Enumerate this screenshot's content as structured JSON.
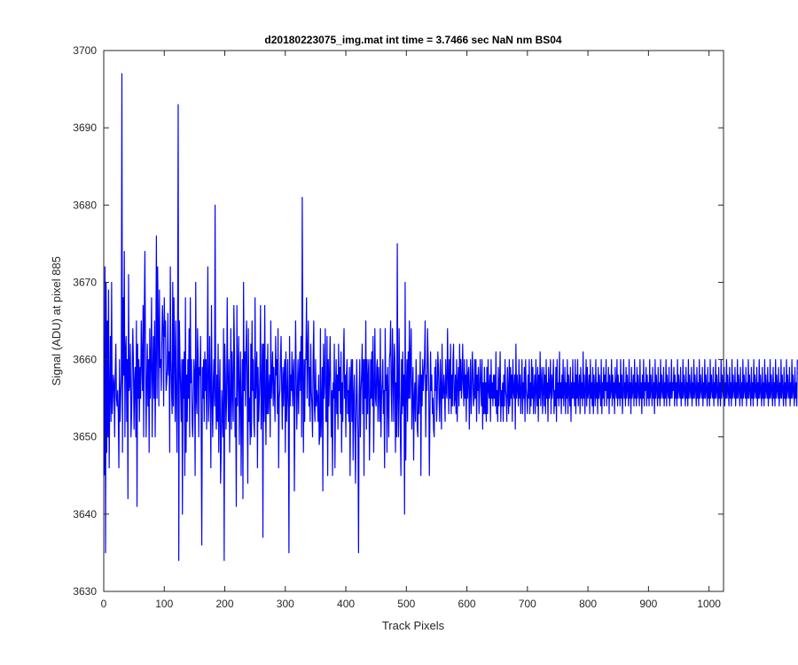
{
  "chart_data": {
    "type": "line",
    "title": "d20180223075_img.mat int time = 3.7466 sec  NaN nm BS04",
    "xlabel": "Track Pixels",
    "ylabel": "Signal (ADU) at pixel 885",
    "xlim": [
      0,
      1024
    ],
    "ylim": [
      3630,
      3700
    ],
    "x_ticks": [
      0,
      100,
      200,
      300,
      400,
      500,
      600,
      700,
      800,
      900,
      1000
    ],
    "y_ticks": [
      3630,
      3640,
      3650,
      3660,
      3670,
      3680,
      3690,
      3700
    ],
    "grid": false,
    "legend": "none",
    "line_color": "#0000ff",
    "x_start": 1,
    "x_step": 1,
    "series": [
      {
        "values": [
          3645,
          3672,
          3635,
          3670,
          3648,
          3665,
          3650,
          3669,
          3646,
          3655,
          3663,
          3652,
          3670,
          3653,
          3655,
          3658,
          3657,
          3650,
          3658,
          3662,
          3655,
          3654,
          3656,
          3653,
          3646,
          3660,
          3652,
          3655,
          3658,
          3697,
          3648,
          3668,
          3658,
          3674,
          3650,
          3661,
          3663,
          3652,
          3660,
          3642,
          3671,
          3656,
          3657,
          3662,
          3650,
          3653,
          3658,
          3664,
          3660,
          3651,
          3657,
          3659,
          3650,
          3665,
          3641,
          3662,
          3655,
          3660,
          3652,
          3659,
          3655,
          3665,
          3660,
          3656,
          3667,
          3650,
          3666,
          3674,
          3660,
          3650,
          3657,
          3662,
          3654,
          3660,
          3648,
          3664,
          3655,
          3660,
          3668,
          3650,
          3658,
          3663,
          3655,
          3665,
          3650,
          3660,
          3676,
          3655,
          3672,
          3665,
          3654,
          3669,
          3659,
          3660,
          3656,
          3663,
          3667,
          3664,
          3654,
          3668,
          3663,
          3665,
          3656,
          3657,
          3659,
          3666,
          3658,
          3661,
          3648,
          3672,
          3660,
          3656,
          3653,
          3670,
          3654,
          3668,
          3660,
          3652,
          3665,
          3656,
          3648,
          3660,
          3693,
          3634,
          3665,
          3660,
          3656,
          3652,
          3660,
          3640,
          3660,
          3655,
          3661,
          3645,
          3668,
          3648,
          3658,
          3652,
          3660,
          3655,
          3664,
          3650,
          3668,
          3657,
          3660,
          3652,
          3650,
          3655,
          3660,
          3658,
          3645,
          3670,
          3655,
          3653,
          3664,
          3660,
          3650,
          3659,
          3658,
          3663,
          3651,
          3636,
          3659,
          3655,
          3660,
          3652,
          3661,
          3656,
          3660,
          3651,
          3658,
          3672,
          3652,
          3655,
          3663,
          3656,
          3646,
          3667,
          3655,
          3650,
          3657,
          3660,
          3654,
          3680,
          3655,
          3651,
          3658,
          3652,
          3662,
          3648,
          3655,
          3660,
          3644,
          3648,
          3656,
          3653,
          3650,
          3664,
          3634,
          3662,
          3658,
          3651,
          3655,
          3668,
          3657,
          3652,
          3660,
          3648,
          3655,
          3664,
          3651,
          3661,
          3656,
          3652,
          3667,
          3661,
          3650,
          3655,
          3641,
          3667,
          3654,
          3658,
          3663,
          3649,
          3656,
          3661,
          3645,
          3654,
          3660,
          3642,
          3670,
          3656,
          3661,
          3654,
          3661,
          3665,
          3657,
          3644,
          3664,
          3652,
          3655,
          3649,
          3662,
          3650,
          3665,
          3656,
          3660,
          3652,
          3650,
          3668,
          3655,
          3658,
          3661,
          3646,
          3659,
          3652,
          3655,
          3658,
          3667,
          3651,
          3656,
          3662,
          3637,
          3662,
          3652,
          3667,
          3655,
          3649,
          3660,
          3653,
          3662,
          3653,
          3656,
          3658,
          3650,
          3665,
          3655,
          3658,
          3661,
          3654,
          3659,
          3656,
          3652,
          3663,
          3658,
          3660,
          3653,
          3664,
          3646,
          3655,
          3656,
          3660,
          3663,
          3656,
          3651,
          3659,
          3654,
          3658,
          3660,
          3648,
          3661,
          3652,
          3655,
          3660,
          3654,
          3635,
          3663,
          3654,
          3658,
          3656,
          3661,
          3654,
          3658,
          3660,
          3643,
          3655,
          3665,
          3658,
          3651,
          3656,
          3660,
          3653,
          3658,
          3661,
          3656,
          3663,
          3650,
          3681,
          3658,
          3648,
          3660,
          3652,
          3660,
          3660,
          3668,
          3655,
          3661,
          3665,
          3654,
          3659,
          3652,
          3662,
          3656,
          3654,
          3650,
          3660,
          3665,
          3654,
          3652,
          3660,
          3654,
          3656,
          3655,
          3652,
          3658,
          3649,
          3650,
          3664,
          3650,
          3654,
          3659,
          3643,
          3662,
          3655,
          3658,
          3664,
          3652,
          3652,
          3663,
          3645,
          3660,
          3654,
          3658,
          3663,
          3656,
          3650,
          3656,
          3645,
          3657,
          3655,
          3662,
          3646,
          3656,
          3660,
          3653,
          3658,
          3651,
          3662,
          3656,
          3659,
          3653,
          3661,
          3648,
          3657,
          3652,
          3660,
          3664,
          3655,
          3658,
          3650,
          3658,
          3660,
          3653,
          3656,
          3652,
          3659,
          3645,
          3657,
          3660,
          3652,
          3660,
          3647,
          3655,
          3658,
          3651,
          3644,
          3654,
          3660,
          3654,
          3650,
          3635,
          3655,
          3660,
          3650,
          3656,
          3658,
          3662,
          3653,
          3660,
          3645,
          3660,
          3655,
          3665,
          3651,
          3660,
          3653,
          3658,
          3660,
          3647,
          3653,
          3660,
          3655,
          3661,
          3654,
          3663,
          3648,
          3656,
          3664,
          3655,
          3654,
          3659,
          3660,
          3652,
          3659,
          3656,
          3652,
          3664,
          3650,
          3655,
          3657,
          3660,
          3653,
          3656,
          3646,
          3664,
          3656,
          3658,
          3648,
          3659,
          3655,
          3650,
          3660,
          3661,
          3665,
          3656,
          3652,
          3664,
          3658,
          3652,
          3662,
          3660,
          3648,
          3657,
          3650,
          3675,
          3655,
          3650,
          3664,
          3656,
          3651,
          3645,
          3660,
          3653,
          3661,
          3654,
          3658,
          3640,
          3670,
          3647,
          3656,
          3660,
          3652,
          3661,
          3655,
          3665,
          3655,
          3660,
          3664,
          3651,
          3656,
          3659,
          3647,
          3655,
          3657,
          3652,
          3660,
          3656,
          3651,
          3650,
          3658,
          3653,
          3656,
          3661,
          3645,
          3658,
          3654,
          3660,
          3656,
          3658,
          3660,
          3665,
          3650,
          3658,
          3656,
          3664,
          3660,
          3656,
          3645,
          3653,
          3661,
          3656,
          3658,
          3653,
          3655,
          3651,
          3650,
          3659,
          3656,
          3660,
          3652,
          3655,
          3661,
          3659,
          3655,
          3652,
          3660,
          3656,
          3651,
          3662,
          3655,
          3655,
          3658,
          3656,
          3652,
          3660,
          3656,
          3655,
          3664,
          3658,
          3653,
          3660,
          3655,
          3662,
          3653,
          3658,
          3654,
          3660,
          3662,
          3654,
          3655,
          3658,
          3653,
          3660,
          3652,
          3657,
          3659,
          3654,
          3662,
          3656,
          3660,
          3655,
          3657,
          3662,
          3657,
          3654,
          3660,
          3655,
          3658,
          3652,
          3660,
          3655,
          3658,
          3659,
          3651,
          3656,
          3660,
          3653,
          3656,
          3661,
          3658,
          3654,
          3655,
          3660,
          3655,
          3660,
          3652,
          3658,
          3656,
          3659,
          3653,
          3656,
          3660,
          3657,
          3654,
          3660,
          3651,
          3657,
          3653,
          3659,
          3653,
          3657,
          3652,
          3659,
          3653,
          3660,
          3656,
          3655,
          3658,
          3652,
          3660,
          3655,
          3657,
          3654,
          3658,
          3655,
          3658,
          3654,
          3661,
          3653,
          3656,
          3652,
          3659,
          3654,
          3657,
          3661,
          3652,
          3656,
          3654,
          3657,
          3652,
          3658,
          3654,
          3660,
          3656,
          3655,
          3652,
          3659,
          3656,
          3653,
          3660,
          3654,
          3659,
          3655,
          3658,
          3652,
          3660,
          3656,
          3655,
          3658,
          3651,
          3662,
          3655,
          3658,
          3656,
          3654,
          3660,
          3655,
          3658,
          3653,
          3656,
          3660,
          3653,
          3657,
          3655,
          3659,
          3652,
          3660,
          3656,
          3655,
          3653,
          3658,
          3655,
          3660,
          3653,
          3657,
          3654,
          3660,
          3655,
          3659,
          3653,
          3656,
          3658,
          3653,
          3660,
          3656,
          3654,
          3659,
          3652,
          3658,
          3655,
          3661,
          3654,
          3657,
          3659,
          3653,
          3656,
          3659,
          3654,
          3658,
          3653,
          3660,
          3655,
          3657,
          3652,
          3659,
          3655,
          3656,
          3660,
          3653,
          3658,
          3655,
          3657,
          3660,
          3653,
          3656,
          3654,
          3659,
          3652,
          3660,
          3655,
          3657,
          3654,
          3661,
          3655,
          3657,
          3653,
          3658,
          3655,
          3660,
          3654,
          3656,
          3659,
          3653,
          3657,
          3655,
          3660,
          3653,
          3658,
          3656,
          3654,
          3659,
          3652,
          3657,
          3655,
          3660,
          3655,
          3657,
          3654,
          3660,
          3653,
          3658,
          3655,
          3660,
          3654,
          3656,
          3658,
          3653,
          3659,
          3655,
          3657,
          3654,
          3661,
          3655,
          3658,
          3653,
          3656,
          3660,
          3654,
          3659,
          3655,
          3656,
          3658,
          3653,
          3660,
          3655,
          3657,
          3654,
          3659,
          3653,
          3658,
          3656,
          3654,
          3660,
          3655,
          3657,
          3653,
          3659,
          3655,
          3658,
          3656,
          3654,
          3660,
          3653,
          3657,
          3655,
          3659,
          3654,
          3658,
          3656,
          3660,
          3654,
          3657,
          3655,
          3659,
          3653,
          3658,
          3655,
          3656,
          3660,
          3654,
          3658,
          3655,
          3657,
          3653,
          3659,
          3656,
          3655,
          3660,
          3654,
          3658,
          3655,
          3657,
          3654,
          3660,
          3655,
          3658,
          3653,
          3656,
          3660,
          3655,
          3657,
          3654,
          3659,
          3655,
          3658,
          3656,
          3654,
          3660,
          3655,
          3657,
          3653,
          3659,
          3655,
          3656,
          3658,
          3654,
          3660,
          3655,
          3657,
          3654,
          3659,
          3655,
          3658,
          3656,
          3654,
          3660,
          3655,
          3657,
          3653,
          3658,
          3655,
          3660,
          3654,
          3657,
          3656,
          3659,
          3654,
          3658,
          3655,
          3657,
          3654,
          3660,
          3655,
          3658,
          3656,
          3654,
          3659,
          3655,
          3657,
          3653,
          3660,
          3655,
          3658,
          3656,
          3654,
          3659,
          3655,
          3657,
          3654,
          3660,
          3655,
          3658,
          3656,
          3655,
          3659,
          3654,
          3657,
          3655,
          3660,
          3654,
          3658,
          3656,
          3655,
          3659,
          3654,
          3657,
          3655,
          3660,
          3655,
          3657,
          3656,
          3659,
          3654,
          3658,
          3655,
          3657,
          3654,
          3660,
          3655,
          3658,
          3656,
          3655,
          3659,
          3654,
          3657,
          3655,
          3660,
          3655,
          3658,
          3656,
          3654,
          3659,
          3655,
          3657,
          3654,
          3660,
          3655,
          3658,
          3656,
          3655,
          3659,
          3654,
          3657,
          3655,
          3660,
          3655,
          3658,
          3656,
          3654,
          3659,
          3655,
          3657,
          3654,
          3660,
          3655,
          3658,
          3656,
          3655,
          3659,
          3654,
          3657,
          3655,
          3660,
          3655,
          3658,
          3656,
          3654,
          3659,
          3655,
          3657,
          3654,
          3660,
          3655,
          3658,
          3656,
          3655,
          3659,
          3654,
          3657,
          3655,
          3660,
          3655,
          3658,
          3656,
          3654,
          3659,
          3655,
          3657,
          3654,
          3660,
          3655,
          3658,
          3656,
          3655,
          3659,
          3654,
          3657,
          3655,
          3660,
          3655,
          3658,
          3656,
          3654,
          3659,
          3655,
          3657,
          3654,
          3660,
          3655,
          3658,
          3656,
          3655,
          3659,
          3654,
          3657,
          3655,
          3660,
          3655,
          3658,
          3656,
          3654,
          3659,
          3655,
          3657,
          3654,
          3660,
          3655,
          3658,
          3656,
          3655,
          3659,
          3654,
          3657,
          3655,
          3660,
          3655,
          3658,
          3656,
          3654,
          3659,
          3655,
          3657,
          3654,
          3660,
          3655,
          3658,
          3656,
          3655,
          3659,
          3654,
          3657,
          3655,
          3660,
          3655,
          3658,
          3656,
          3654,
          3659,
          3655,
          3657,
          3654,
          3660,
          3655,
          3658,
          3656,
          3655,
          3659,
          3654,
          3657,
          3655,
          3660,
          3655,
          3658,
          3656,
          3654,
          3659,
          3655,
          3657,
          3654,
          3660,
          3655,
          3658,
          3656,
          3655,
          3659,
          3654,
          3657,
          3655,
          3660,
          3655,
          3658,
          3656,
          3654,
          3659,
          3655,
          3657,
          3654,
          3660,
          3655,
          3658,
          3656,
          3655,
          3659,
          3654,
          3657,
          3655,
          3660,
          3655,
          3658,
          3656,
          3654,
          3659,
          3655,
          3657,
          3654,
          3660
        ]
      }
    ]
  }
}
